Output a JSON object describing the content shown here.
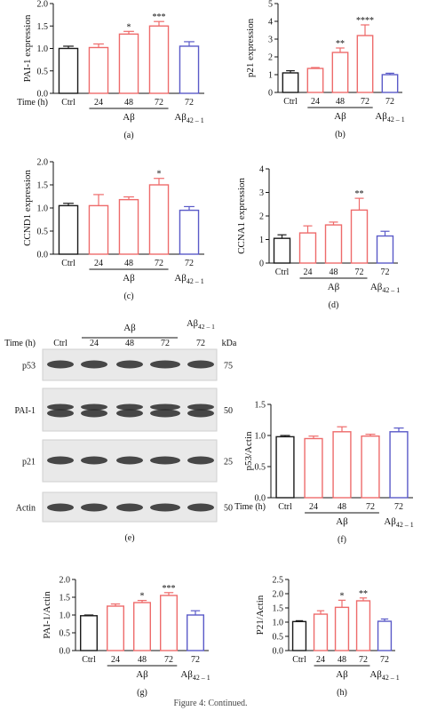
{
  "figure": {
    "caption": "Figure 4: Continued."
  },
  "colors": {
    "ctrl": "#1a1a1a",
    "abeta": "#ee6b6b",
    "reverse": "#5a5ac8"
  },
  "chart_data": [
    {
      "panel": "(a)",
      "type": "bar",
      "ylabel": "PAI-1 expression",
      "ylim": [
        0,
        2.0
      ],
      "yticks": [
        "0.0",
        "0.5",
        "1.0",
        "1.5",
        "2.0"
      ],
      "x_title": "Time (h)",
      "categories": [
        "Ctrl",
        "24",
        "48",
        "72",
        "72"
      ],
      "values": [
        1.0,
        1.02,
        1.32,
        1.5,
        1.05
      ],
      "errors": [
        0.05,
        0.08,
        0.06,
        0.1,
        0.1
      ],
      "significance": [
        "",
        "",
        "*",
        "***",
        ""
      ],
      "group_colors": [
        "ctrl",
        "abeta",
        "abeta",
        "abeta",
        "reverse"
      ],
      "group_label": "Aβ",
      "reverse_label": "Aβ42 – 1"
    },
    {
      "panel": "(b)",
      "type": "bar",
      "ylabel": "p21 expression",
      "ylim": [
        0,
        5
      ],
      "yticks": [
        "0",
        "1",
        "2",
        "3",
        "4",
        "5"
      ],
      "x_title": "",
      "categories": [
        "Ctrl",
        "24",
        "48",
        "72",
        "72"
      ],
      "values": [
        1.1,
        1.35,
        2.25,
        3.2,
        1.0
      ],
      "errors": [
        0.12,
        0.05,
        0.25,
        0.6,
        0.08
      ],
      "significance": [
        "",
        "",
        "**",
        "****",
        ""
      ],
      "group_colors": [
        "ctrl",
        "abeta",
        "abeta",
        "abeta",
        "reverse"
      ],
      "group_label": "Aβ",
      "reverse_label": "Aβ42 – 1"
    },
    {
      "panel": "(c)",
      "type": "bar",
      "ylabel": "CCND1 expression",
      "ylim": [
        0,
        2.0
      ],
      "yticks": [
        "0.0",
        "0.5",
        "1.0",
        "1.5",
        "2.0"
      ],
      "x_title": "",
      "categories": [
        "Ctrl",
        "24",
        "48",
        "72",
        "72"
      ],
      "values": [
        1.05,
        1.05,
        1.18,
        1.5,
        0.95
      ],
      "errors": [
        0.05,
        0.24,
        0.06,
        0.14,
        0.08
      ],
      "significance": [
        "",
        "",
        "",
        "*",
        ""
      ],
      "group_colors": [
        "ctrl",
        "abeta",
        "abeta",
        "abeta",
        "reverse"
      ],
      "group_label": "Aβ",
      "reverse_label": "Aβ42 – 1"
    },
    {
      "panel": "(d)",
      "type": "bar",
      "ylabel": "CCNA1 expression",
      "ylim": [
        0,
        4
      ],
      "yticks": [
        "0",
        "1",
        "2",
        "3",
        "4"
      ],
      "x_title": "",
      "categories": [
        "Ctrl",
        "24",
        "48",
        "72",
        "72"
      ],
      "values": [
        1.05,
        1.28,
        1.62,
        2.25,
        1.15
      ],
      "errors": [
        0.15,
        0.3,
        0.12,
        0.5,
        0.2
      ],
      "significance": [
        "",
        "",
        "",
        "**",
        ""
      ],
      "group_colors": [
        "ctrl",
        "abeta",
        "abeta",
        "abeta",
        "reverse"
      ],
      "group_label": "Aβ",
      "reverse_label": "Aβ42 – 1"
    },
    {
      "panel": "(f)",
      "type": "bar",
      "ylabel": "p53/Actin",
      "ylim": [
        0,
        1.5
      ],
      "yticks": [
        "0.0",
        "0.5",
        "1.0",
        "1.5"
      ],
      "x_title": "Time (h)",
      "categories": [
        "Ctrl",
        "24",
        "48",
        "72",
        "72"
      ],
      "values": [
        0.98,
        0.95,
        1.06,
        0.99,
        1.06
      ],
      "errors": [
        0.02,
        0.04,
        0.08,
        0.03,
        0.06
      ],
      "significance": [
        "",
        "",
        "",
        "",
        ""
      ],
      "group_colors": [
        "ctrl",
        "abeta",
        "abeta",
        "abeta",
        "reverse"
      ],
      "group_label": "Aβ",
      "reverse_label": "Aβ42 – 1"
    },
    {
      "panel": "(g)",
      "type": "bar",
      "ylabel": "PAI-1/Actin",
      "ylim": [
        0,
        2.0
      ],
      "yticks": [
        "0.0",
        "0.5",
        "1.0",
        "1.5",
        "2.0"
      ],
      "x_title": "",
      "categories": [
        "Ctrl",
        "24",
        "48",
        "72",
        "72"
      ],
      "values": [
        0.98,
        1.25,
        1.35,
        1.55,
        1.0
      ],
      "errors": [
        0.02,
        0.06,
        0.06,
        0.08,
        0.12
      ],
      "significance": [
        "",
        "",
        "*",
        "***",
        ""
      ],
      "group_colors": [
        "ctrl",
        "abeta",
        "abeta",
        "abeta",
        "reverse"
      ],
      "group_label": "Aβ",
      "reverse_label": "Aβ42 – 1"
    },
    {
      "panel": "(h)",
      "type": "bar",
      "ylabel": "P21/Actin",
      "ylim": [
        0,
        2.5
      ],
      "yticks": [
        "0.0",
        "0.5",
        "1.0",
        "1.5",
        "2.0",
        "2.5"
      ],
      "x_title": "",
      "categories": [
        "Ctrl",
        "24",
        "48",
        "72",
        "72"
      ],
      "values": [
        1.02,
        1.28,
        1.52,
        1.75,
        1.03
      ],
      "errors": [
        0.03,
        0.12,
        0.25,
        0.1,
        0.08
      ],
      "significance": [
        "",
        "",
        "*",
        "**",
        ""
      ],
      "group_colors": [
        "ctrl",
        "abeta",
        "abeta",
        "abeta",
        "reverse"
      ],
      "group_label": "Aβ",
      "reverse_label": "Aβ42 – 1"
    }
  ],
  "blot": {
    "panel": "(e)",
    "group_label": "Aβ",
    "reverse_label": "Aβ42 – 1",
    "time_label": "Time (h)",
    "lanes": [
      "Ctrl",
      "24",
      "48",
      "72",
      "72"
    ],
    "kda_label": "kDa",
    "rows": [
      {
        "name": "p53",
        "kda": "75"
      },
      {
        "name": "PAI-1",
        "kda": "50"
      },
      {
        "name": "p21",
        "kda": "25"
      },
      {
        "name": "Actin",
        "kda": "50"
      }
    ]
  }
}
